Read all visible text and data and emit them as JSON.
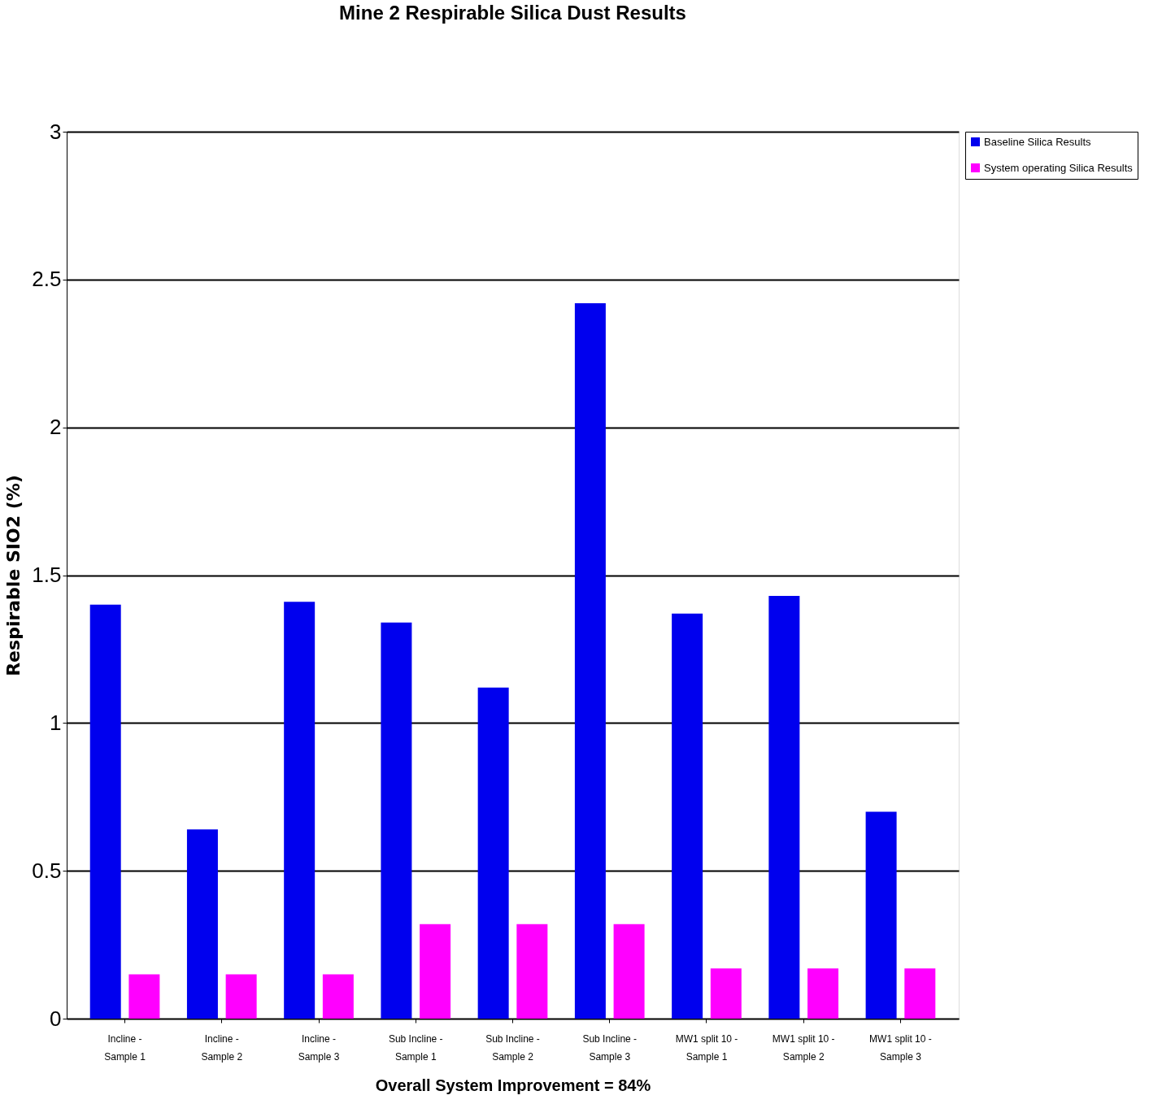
{
  "chart_data": {
    "type": "bar",
    "title": "Mine 2 Respirable Silica Dust Results",
    "ylabel": "Respirable SIO2 (%)",
    "categories": [
      "Incline - Sample 1",
      "Incline - Sample 2",
      "Incline - Sample 3",
      "Sub Incline - Sample 1",
      "Sub Incline - Sample 2",
      "Sub Incline - Sample 3",
      "MW1 split 10 - Sample 1",
      "MW1 split 10 - Sample 2",
      "MW1 split 10 - Sample 3"
    ],
    "series": [
      {
        "name": "Baseline Silica Results",
        "color": "#0000ee",
        "values": [
          1.4,
          0.64,
          1.41,
          1.34,
          1.12,
          2.42,
          1.37,
          1.43,
          0.7
        ]
      },
      {
        "name": "System operating Silica Results",
        "color": "#ff00ff",
        "values": [
          0.15,
          0.15,
          0.15,
          0.32,
          0.32,
          0.32,
          0.17,
          0.17,
          0.17
        ]
      }
    ],
    "ylim": [
      0,
      3
    ],
    "yticks": [
      0,
      0.5,
      1,
      1.5,
      2,
      2.5,
      3
    ],
    "grid": "y",
    "legend": "right",
    "annotations": [
      "Overall System Improvement = 84%"
    ]
  }
}
